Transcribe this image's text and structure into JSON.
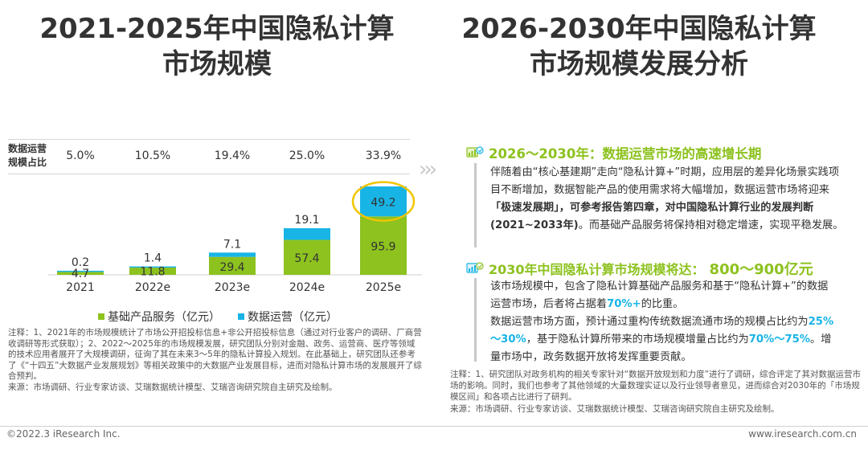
{
  "titles": {
    "left": [
      "2021-2025年中国隐私计算",
      "市场规模"
    ],
    "right": [
      "2026-2030年中国隐私计算",
      "市场规模发展分析"
    ]
  },
  "share": {
    "label": "数据运营\n规模占比",
    "values": [
      "5.0%",
      "10.5%",
      "19.4%",
      "25.0%",
      "33.9%"
    ]
  },
  "chart_data": {
    "type": "bar",
    "stacked": true,
    "categories": [
      "2021",
      "2022e",
      "2023e",
      "2024e",
      "2025e"
    ],
    "series": [
      {
        "name": "基础产品服务（亿元）",
        "values": [
          4.7,
          11.8,
          29.4,
          57.4,
          95.9
        ],
        "color": "#8dc21f"
      },
      {
        "name": "数据运营（亿元）",
        "values": [
          0.2,
          1.4,
          7.1,
          19.1,
          49.2
        ],
        "color": "#18b4e6"
      }
    ],
    "highlight": {
      "category": "2025e",
      "series": "数据运营（亿元）",
      "color": "#f2c500"
    }
  },
  "note_left": "注释：1、2021年的市场规模统计了市场公开招投标信息+非公开招投标信息（通过对行业客户的调研、厂商营收调研等形式获取）；2、2022～2025年的市场规模发展，研究团队分别对金融、政务、运营商、医疗等领域的技术应用者展开了大规模调研，征询了其在未来3～5年的隐私计算投入规划。在此基础上，研究团队还参考了《“十四五”大数据产业发展规划》等相关政策中的大数据产业发展目标，进而对隐私计算市场的发展展开了综合预判。\n来源：市场调研、行业专家访谈、艾瑞数据统计模型、艾瑞咨询研究院自主研究及绘制。",
  "section1": {
    "heading": "2026～2030年：数据运营市场的高速增长期",
    "t1": "伴随着由“核心基建期”走向“隐私计算+”时期，应用层的差异化场景实践项目不断增加，数据智能产品的使用需求将大幅增加，数据运营市场将迎来",
    "t2": "「极速发展期」，可参考报告第四章，对中国隐私计算行业的发展判断(2021~2033年)",
    "t3": "。而基础产品服务将保持相对稳定增速，实现平稳发展。"
  },
  "section2": {
    "heading_a": "2030年中国隐私计算市场规模将达：",
    "heading_b": "800～900亿元",
    "p1a": "该市场规模中，包含了隐私计算基础产品服务和基于“隐私计算+”的数据运营市场，后者将占据着",
    "p1b": "70%+",
    "p1c": "的比重。",
    "p2a": "数据运营市场方面，预计通过重构传统数据流通市场的规模占比约为",
    "p2b": "25%～30%",
    "p2c": "，基于隐私计算所带来的市场规模增量占比约为",
    "p2d": "70%～75%",
    "p2e": "。增量市场中，政务数据开放将发挥重要贡献。"
  },
  "note_right": "注释：1、研究团队对政务机构的相关专家针对“数据开放规划和力度”进行了调研，综合评定了其对数据运营市场的影响。同时，我们也参考了其他领域的大量数理实证以及行业领导者意见，进而综合对2030年的「市场规模区间」和各项占比进行了研判。\n来源：市场调研、行业专家访谈、艾瑞数据统计模型、艾瑞咨询研究院自主研究及绘制。",
  "footer": {
    "left": "©2022.3 iResearch Inc.",
    "right": "www.iresearch.com.cn"
  }
}
